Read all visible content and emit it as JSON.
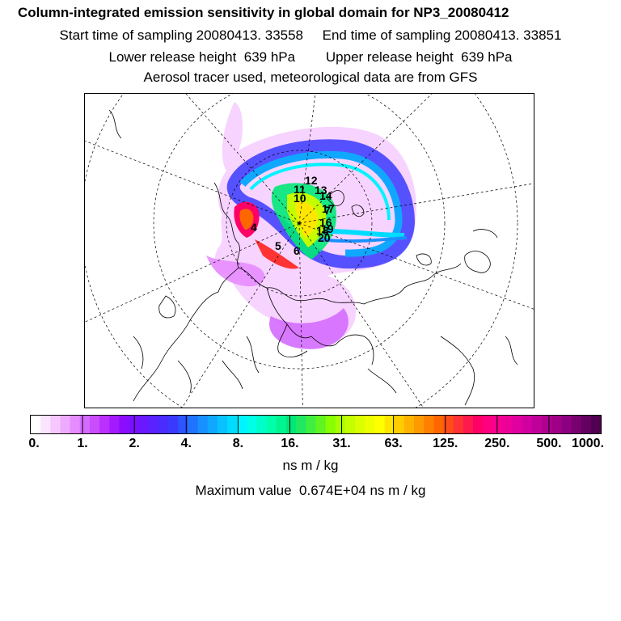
{
  "header": {
    "title": "Column-integrated emission sensitivity in global domain for NP3_20080412",
    "sampling_line": "Start time of sampling 20080413. 33558     End time of sampling 20080413. 33851",
    "height_line": "Lower release height  639 hPa        Upper release height  639 hPa",
    "tracer_line": "Aerosol tracer used, meteorological data are from GFS"
  },
  "map": {
    "projection": "polar-stereographic-north",
    "trajectory_labels": [
      "4",
      "5",
      "6",
      "7",
      "10",
      "11",
      "12",
      "13",
      "14",
      "16",
      "17",
      "18",
      "19",
      "20"
    ]
  },
  "colorbar": {
    "tick_labels": [
      "0.",
      "1.",
      "2.",
      "4.",
      "8.",
      "16.",
      "31.",
      "63.",
      "125.",
      "250.",
      "500.",
      "1000."
    ],
    "unit": "ns m / kg",
    "colors": [
      "#ffffff",
      "#fbe4ff",
      "#f5c8ff",
      "#eeaaff",
      "#e58cff",
      "#d46bff",
      "#c94cff",
      "#bb30ff",
      "#a41aff",
      "#8c0cff",
      "#7a10ff",
      "#6a18ff",
      "#5a22ff",
      "#4a2cff",
      "#3a3aff",
      "#2c55ff",
      "#1f73ff",
      "#1890ff",
      "#10a8ff",
      "#08c2ff",
      "#00dcff",
      "#00f4ff",
      "#00ffe8",
      "#00ffc8",
      "#00ffa8",
      "#00f590",
      "#00e878",
      "#20e860",
      "#40ee40",
      "#60f420",
      "#88ff00",
      "#a8ff00",
      "#c4ff00",
      "#dcff00",
      "#eeff00",
      "#ffff00",
      "#ffe600",
      "#ffcc00",
      "#ffb300",
      "#ff9900",
      "#ff8000",
      "#ff6600",
      "#ff4d1a",
      "#ff3333",
      "#ff1a4d",
      "#ff0066",
      "#ff0080",
      "#f70090",
      "#ec0098",
      "#e000a0",
      "#d000a0",
      "#c0009a",
      "#b00090",
      "#a00088",
      "#8c0080",
      "#780070",
      "#640060",
      "#500050"
    ]
  },
  "max_value": "Maximum value  0.674E+04 ns m / kg"
}
